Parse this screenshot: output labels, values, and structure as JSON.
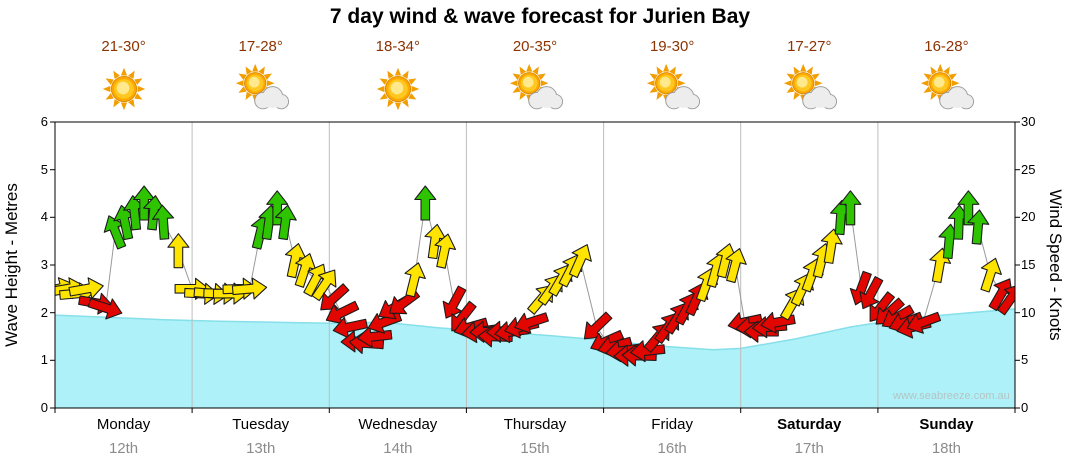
{
  "title": "7 day wind & wave forecast for Jurien Bay",
  "watermark": "www.seabreeze.com.au",
  "y_left": {
    "label": "Wave Height - Metres",
    "ticks": [
      0,
      1,
      2,
      3,
      4,
      5,
      6
    ],
    "max": 6
  },
  "y_right": {
    "label": "Wind Speed - Knots",
    "ticks": [
      0,
      5,
      10,
      15,
      20,
      25,
      30
    ],
    "max": 30
  },
  "days": [
    {
      "name": "Monday",
      "date": "12th",
      "temp": "21-30°",
      "icon": "sunny",
      "bold": false
    },
    {
      "name": "Tuesday",
      "date": "13th",
      "temp": "17-28°",
      "icon": "partly-cloudy",
      "bold": false
    },
    {
      "name": "Wednesday",
      "date": "14th",
      "temp": "18-34°",
      "icon": "sunny",
      "bold": false
    },
    {
      "name": "Thursday",
      "date": "15th",
      "temp": "20-35°",
      "icon": "partly-cloudy",
      "bold": false
    },
    {
      "name": "Friday",
      "date": "16th",
      "temp": "19-30°",
      "icon": "partly-cloudy",
      "bold": false
    },
    {
      "name": "Saturday",
      "date": "17th",
      "temp": "17-27°",
      "icon": "partly-cloudy",
      "bold": true
    },
    {
      "name": "Sunday",
      "date": "18th",
      "temp": "16-28°",
      "icon": "partly-cloudy",
      "bold": true
    }
  ],
  "colors": {
    "wave_fill": "#aef1f8",
    "wave_edge": "#86dfe9",
    "arrow_red": "#e10600",
    "arrow_yellow": "#ffe400",
    "arrow_green": "#2ec500",
    "grid": "#bdbdbd",
    "connector": "#9a9a9a",
    "temp_text": "#8b3302",
    "date_text": "#8c8c8c"
  },
  "chart_data": {
    "type": "area+wind-arrows",
    "x_unit": "days from Monday 00:00 (0-7)",
    "y_left_range": [
      0,
      6
    ],
    "y_right_range": [
      0,
      30
    ],
    "wave_height_m": {
      "x": [
        0,
        0.4,
        0.8,
        1.2,
        1.6,
        2.0,
        2.4,
        2.8,
        3.2,
        3.6,
        4.0,
        4.4,
        4.8,
        5.0,
        5.4,
        5.8,
        6.2,
        6.6,
        7.0
      ],
      "y": [
        1.95,
        1.9,
        1.85,
        1.82,
        1.8,
        1.78,
        1.8,
        1.68,
        1.6,
        1.52,
        1.42,
        1.3,
        1.22,
        1.25,
        1.45,
        1.7,
        1.88,
        1.98,
        2.08
      ]
    },
    "wind_arrows": [
      {
        "d": 0.02,
        "k": 12.5,
        "a": 75,
        "c": "y"
      },
      {
        "d": 0.09,
        "k": 12.5,
        "a": 80,
        "c": "y"
      },
      {
        "d": 0.16,
        "k": 12,
        "a": 85,
        "c": "y"
      },
      {
        "d": 0.23,
        "k": 12.5,
        "a": 80,
        "c": "y"
      },
      {
        "d": 0.3,
        "k": 11,
        "a": 100,
        "c": "r"
      },
      {
        "d": 0.37,
        "k": 10.5,
        "a": 108,
        "c": "r"
      },
      {
        "d": 0.44,
        "k": 18.5,
        "a": -22,
        "c": "g"
      },
      {
        "d": 0.51,
        "k": 19.5,
        "a": -12,
        "c": "g"
      },
      {
        "d": 0.58,
        "k": 20.5,
        "a": -6,
        "c": "g"
      },
      {
        "d": 0.65,
        "k": 21.5,
        "a": 0,
        "c": "g"
      },
      {
        "d": 0.72,
        "k": 20.5,
        "a": 6,
        "c": "g"
      },
      {
        "d": 0.79,
        "k": 19.5,
        "a": -4,
        "c": "g"
      },
      {
        "d": 0.9,
        "k": 16.5,
        "a": 0,
        "c": "y"
      },
      {
        "d": 1.0,
        "k": 12.5,
        "a": 90,
        "c": "y"
      },
      {
        "d": 1.07,
        "k": 12,
        "a": 93,
        "c": "y"
      },
      {
        "d": 1.14,
        "k": 12,
        "a": 95,
        "c": "y"
      },
      {
        "d": 1.21,
        "k": 12,
        "a": 92,
        "c": "y"
      },
      {
        "d": 1.28,
        "k": 12,
        "a": 90,
        "c": "y"
      },
      {
        "d": 1.35,
        "k": 12.5,
        "a": 88,
        "c": "y"
      },
      {
        "d": 1.42,
        "k": 12.5,
        "a": 85,
        "c": "y"
      },
      {
        "d": 1.5,
        "k": 18.5,
        "a": 14,
        "c": "g"
      },
      {
        "d": 1.56,
        "k": 19.5,
        "a": 8,
        "c": "g"
      },
      {
        "d": 1.62,
        "k": 21,
        "a": 0,
        "c": "g"
      },
      {
        "d": 1.68,
        "k": 19.5,
        "a": 8,
        "c": "g"
      },
      {
        "d": 1.75,
        "k": 15.5,
        "a": 12,
        "c": "y"
      },
      {
        "d": 1.82,
        "k": 14.5,
        "a": 18,
        "c": "y"
      },
      {
        "d": 1.9,
        "k": 13.5,
        "a": 28,
        "c": "y"
      },
      {
        "d": 1.97,
        "k": 13,
        "a": 34,
        "c": "y"
      },
      {
        "d": 2.03,
        "k": 11.5,
        "a": 228,
        "c": "r"
      },
      {
        "d": 2.09,
        "k": 10,
        "a": 244,
        "c": "r"
      },
      {
        "d": 2.15,
        "k": 8.5,
        "a": 258,
        "c": "r"
      },
      {
        "d": 2.21,
        "k": 7,
        "a": 268,
        "c": "r"
      },
      {
        "d": 2.27,
        "k": 6.8,
        "a": 274,
        "c": "r"
      },
      {
        "d": 2.33,
        "k": 7.5,
        "a": 264,
        "c": "r"
      },
      {
        "d": 2.4,
        "k": 9,
        "a": 250,
        "c": "r"
      },
      {
        "d": 2.47,
        "k": 10.5,
        "a": 240,
        "c": "r"
      },
      {
        "d": 2.54,
        "k": 11,
        "a": 234,
        "c": "r"
      },
      {
        "d": 2.62,
        "k": 13.5,
        "a": 14,
        "c": "y"
      },
      {
        "d": 2.7,
        "k": 21.5,
        "a": 0,
        "c": "g"
      },
      {
        "d": 2.77,
        "k": 17.5,
        "a": 8,
        "c": "y"
      },
      {
        "d": 2.84,
        "k": 16.5,
        "a": 12,
        "c": "y"
      },
      {
        "d": 2.91,
        "k": 11,
        "a": 208,
        "c": "r"
      },
      {
        "d": 2.97,
        "k": 9.5,
        "a": 218,
        "c": "r"
      },
      {
        "d": 3.03,
        "k": 8.5,
        "a": 254,
        "c": "r"
      },
      {
        "d": 3.09,
        "k": 8,
        "a": 262,
        "c": "r"
      },
      {
        "d": 3.15,
        "k": 8,
        "a": 268,
        "c": "r"
      },
      {
        "d": 3.21,
        "k": 7.5,
        "a": 272,
        "c": "r"
      },
      {
        "d": 3.27,
        "k": 8,
        "a": 268,
        "c": "r"
      },
      {
        "d": 3.33,
        "k": 8,
        "a": 262,
        "c": "r"
      },
      {
        "d": 3.4,
        "k": 8.5,
        "a": 257,
        "c": "r"
      },
      {
        "d": 3.47,
        "k": 9,
        "a": 252,
        "c": "r"
      },
      {
        "d": 3.55,
        "k": 11.5,
        "a": 40,
        "c": "y"
      },
      {
        "d": 3.62,
        "k": 12.5,
        "a": 35,
        "c": "y"
      },
      {
        "d": 3.69,
        "k": 13.5,
        "a": 30,
        "c": "y"
      },
      {
        "d": 3.76,
        "k": 14.5,
        "a": 27,
        "c": "y"
      },
      {
        "d": 3.83,
        "k": 15.5,
        "a": 24,
        "c": "y"
      },
      {
        "d": 3.95,
        "k": 8.5,
        "a": 226,
        "c": "r"
      },
      {
        "d": 4.02,
        "k": 7,
        "a": 246,
        "c": "r"
      },
      {
        "d": 4.08,
        "k": 6.5,
        "a": 255,
        "c": "r"
      },
      {
        "d": 4.14,
        "k": 6,
        "a": 262,
        "c": "r"
      },
      {
        "d": 4.2,
        "k": 5.5,
        "a": 268,
        "c": "r"
      },
      {
        "d": 4.26,
        "k": 5.5,
        "a": 272,
        "c": "r"
      },
      {
        "d": 4.32,
        "k": 6,
        "a": 264,
        "c": "r"
      },
      {
        "d": 4.4,
        "k": 7.5,
        "a": 40,
        "c": "r"
      },
      {
        "d": 4.47,
        "k": 8.5,
        "a": 35,
        "c": "r"
      },
      {
        "d": 4.54,
        "k": 9.5,
        "a": 32,
        "c": "r"
      },
      {
        "d": 4.61,
        "k": 10.5,
        "a": 28,
        "c": "r"
      },
      {
        "d": 4.68,
        "k": 11.5,
        "a": 24,
        "c": "r"
      },
      {
        "d": 4.75,
        "k": 13,
        "a": 20,
        "c": "y"
      },
      {
        "d": 4.82,
        "k": 14.5,
        "a": 16,
        "c": "y"
      },
      {
        "d": 4.89,
        "k": 15.5,
        "a": 14,
        "c": "y"
      },
      {
        "d": 4.96,
        "k": 15,
        "a": 15,
        "c": "y"
      },
      {
        "d": 5.03,
        "k": 9,
        "a": 258,
        "c": "r"
      },
      {
        "d": 5.09,
        "k": 8.5,
        "a": 264,
        "c": "r"
      },
      {
        "d": 5.15,
        "k": 8,
        "a": 270,
        "c": "r"
      },
      {
        "d": 5.21,
        "k": 8.5,
        "a": 266,
        "c": "r"
      },
      {
        "d": 5.27,
        "k": 9,
        "a": 260,
        "c": "r"
      },
      {
        "d": 5.38,
        "k": 11,
        "a": 30,
        "c": "y"
      },
      {
        "d": 5.45,
        "k": 12.5,
        "a": 25,
        "c": "y"
      },
      {
        "d": 5.52,
        "k": 14,
        "a": 20,
        "c": "y"
      },
      {
        "d": 5.59,
        "k": 15.5,
        "a": 14,
        "c": "y"
      },
      {
        "d": 5.66,
        "k": 17,
        "a": 9,
        "c": "y"
      },
      {
        "d": 5.73,
        "k": 20,
        "a": 4,
        "c": "g"
      },
      {
        "d": 5.8,
        "k": 21,
        "a": 0,
        "c": "g"
      },
      {
        "d": 5.88,
        "k": 12.5,
        "a": 200,
        "c": "r"
      },
      {
        "d": 5.95,
        "k": 12,
        "a": 208,
        "c": "r"
      },
      {
        "d": 6.02,
        "k": 10.5,
        "a": 218,
        "c": "r"
      },
      {
        "d": 6.08,
        "k": 10,
        "a": 228,
        "c": "r"
      },
      {
        "d": 6.14,
        "k": 9.5,
        "a": 240,
        "c": "r"
      },
      {
        "d": 6.2,
        "k": 9,
        "a": 250,
        "c": "r"
      },
      {
        "d": 6.26,
        "k": 8.5,
        "a": 256,
        "c": "r"
      },
      {
        "d": 6.33,
        "k": 9,
        "a": 250,
        "c": "r"
      },
      {
        "d": 6.45,
        "k": 15,
        "a": 10,
        "c": "y"
      },
      {
        "d": 6.52,
        "k": 17.5,
        "a": 5,
        "c": "g"
      },
      {
        "d": 6.59,
        "k": 19.5,
        "a": 2,
        "c": "g"
      },
      {
        "d": 6.66,
        "k": 21,
        "a": 0,
        "c": "g"
      },
      {
        "d": 6.73,
        "k": 19,
        "a": 5,
        "c": "g"
      },
      {
        "d": 6.82,
        "k": 14,
        "a": 18,
        "c": "y"
      },
      {
        "d": 6.9,
        "k": 12,
        "a": 30,
        "c": "r"
      },
      {
        "d": 6.97,
        "k": 11.5,
        "a": 35,
        "c": "r"
      }
    ]
  }
}
